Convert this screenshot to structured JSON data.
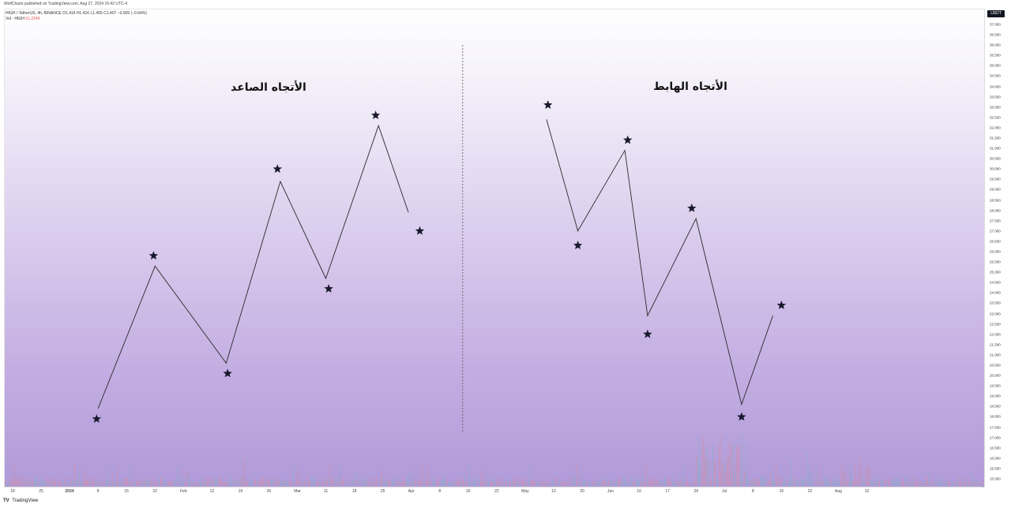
{
  "header": {
    "published_line": "WolfCharts published on TradingView.com, Aug 27, 2024 16:42 UTC-4",
    "symbol_line": "HIGH / TetherUS, 4h, BINANCE  O1.416  H1.416  L1.405  C1.407  −0.009 (−0.64%)",
    "vol_label": "Vol · HIGH",
    "vol_value": "51.224K"
  },
  "currency_badge": "USDT",
  "footer": {
    "logo": "TV",
    "brand": "TradingView"
  },
  "titles": {
    "uptrend": "الأتجاه الصاعد",
    "downtrend": "الأتجاه الهابط"
  },
  "colors": {
    "line": "#2a2a2a",
    "star": "#1a1a2e",
    "vol_up": "#7fb3c8",
    "vol_down": "#d98a9a"
  },
  "chart_data": {
    "type": "line",
    "title": "",
    "xlabel": "",
    "ylabel": "",
    "ylim": [
      14.5,
      37.5
    ],
    "grid": false,
    "price_ticks": [
      "37.000",
      "36.500",
      "36.000",
      "35.500",
      "35.000",
      "34.500",
      "34.000",
      "33.500",
      "33.000",
      "32.500",
      "32.000",
      "31.500",
      "31.000",
      "30.500",
      "30.000",
      "29.500",
      "29.000",
      "28.500",
      "28.000",
      "27.500",
      "27.000",
      "26.500",
      "26.000",
      "25.500",
      "25.000",
      "24.500",
      "24.000",
      "23.500",
      "23.000",
      "22.500",
      "22.000",
      "21.500",
      "21.000",
      "20.500",
      "20.000",
      "19.500",
      "19.000",
      "18.500",
      "18.000",
      "17.500",
      "17.000",
      "16.500",
      "16.000",
      "15.500",
      "15.000"
    ],
    "time_ticks": [
      {
        "label": "18",
        "bold": false
      },
      {
        "label": "25",
        "bold": false
      },
      {
        "label": "2024",
        "bold": true
      },
      {
        "label": "8",
        "bold": false
      },
      {
        "label": "15",
        "bold": false
      },
      {
        "label": "22",
        "bold": false
      },
      {
        "label": "Feb",
        "bold": false
      },
      {
        "label": "12",
        "bold": false
      },
      {
        "label": "19",
        "bold": false
      },
      {
        "label": "26",
        "bold": false
      },
      {
        "label": "Mar",
        "bold": false
      },
      {
        "label": "11",
        "bold": false
      },
      {
        "label": "18",
        "bold": false
      },
      {
        "label": "25",
        "bold": false
      },
      {
        "label": "Apr",
        "bold": false
      },
      {
        "label": "8",
        "bold": false
      },
      {
        "label": "15",
        "bold": false
      },
      {
        "label": "22",
        "bold": false
      },
      {
        "label": "May",
        "bold": false
      },
      {
        "label": "13",
        "bold": false
      },
      {
        "label": "20",
        "bold": false
      },
      {
        "label": "Jun",
        "bold": false
      },
      {
        "label": "10",
        "bold": false
      },
      {
        "label": "17",
        "bold": false
      },
      {
        "label": "24",
        "bold": false
      },
      {
        "label": "Jul",
        "bold": false
      },
      {
        "label": "8",
        "bold": false
      },
      {
        "label": "15",
        "bold": false
      },
      {
        "label": "22",
        "bold": false
      },
      {
        "label": "Aug",
        "bold": false
      },
      {
        "label": "12",
        "bold": false
      }
    ],
    "separator_line": {
      "style": "dashed",
      "at_tick_index": 16
    },
    "series": [
      {
        "values": [
          {
            "tick": 3.0,
            "y": 18.4
          },
          {
            "tick": 5.0,
            "y": 25.3
          },
          {
            "tick": 7.5,
            "y": 20.6
          },
          {
            "tick": 9.4,
            "y": 29.4
          },
          {
            "tick": 11.0,
            "y": 24.7
          },
          {
            "tick": 12.85,
            "y": 32.1
          },
          {
            "tick": 13.9,
            "y": 27.9
          }
        ],
        "markers": [
          {
            "tick": 2.95,
            "y": 17.9
          },
          {
            "tick": 4.95,
            "y": 25.8
          },
          {
            "tick": 7.55,
            "y": 20.1
          },
          {
            "tick": 9.3,
            "y": 30.0
          },
          {
            "tick": 11.1,
            "y": 24.2
          },
          {
            "tick": 12.75,
            "y": 32.6
          },
          {
            "tick": 14.3,
            "y": 27.0
          }
        ]
      },
      {
        "values": [
          {
            "tick": 18.75,
            "y": 32.4
          },
          {
            "tick": 19.85,
            "y": 27.0
          },
          {
            "tick": 21.5,
            "y": 30.9
          },
          {
            "tick": 22.3,
            "y": 22.9
          },
          {
            "tick": 24.0,
            "y": 27.6
          },
          {
            "tick": 25.6,
            "y": 18.6
          },
          {
            "tick": 26.7,
            "y": 22.9
          }
        ],
        "markers": [
          {
            "tick": 18.8,
            "y": 33.1
          },
          {
            "tick": 19.85,
            "y": 26.3
          },
          {
            "tick": 21.6,
            "y": 31.4
          },
          {
            "tick": 22.3,
            "y": 22.0
          },
          {
            "tick": 23.85,
            "y": 28.1
          },
          {
            "tick": 25.6,
            "y": 18.0
          },
          {
            "tick": 27.0,
            "y": 23.4
          }
        ]
      }
    ]
  }
}
